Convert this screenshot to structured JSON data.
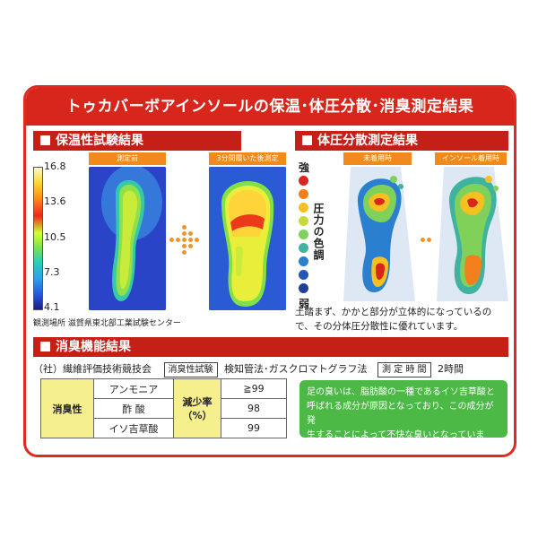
{
  "title": "トゥカバーボアインソールの保温･体圧分散･消臭測定結果",
  "heat": {
    "section_title": "保温性試験結果",
    "before_caption": "測定前",
    "after_caption": "3分間履いた後測定",
    "scale": [
      "16.8",
      "13.6",
      "10.5",
      "7.3",
      "4.1"
    ],
    "location": "観測場所 滋賀県東北部工業試験センター"
  },
  "pressure": {
    "section_title": "体圧分散測定結果",
    "no_insole_caption": "未着用時",
    "insole_caption": "インソール着用時",
    "strong_label": "強",
    "weak_label": "弱",
    "scale_label": "圧力の色調",
    "legend_colors": [
      "#d9261c",
      "#f27e1c",
      "#f6c022",
      "#c9d93a",
      "#7fd15a",
      "#3fb3a0",
      "#2a7fcf",
      "#2456b8",
      "#1e3f9a"
    ],
    "description_line1": "土踏まず、かかと部分が立体的になっているの",
    "description_line2": "で、その分体圧分散性に優れています。"
  },
  "deodorant": {
    "section_title": "消臭機能結果",
    "org": "（社）繊維評価技術競技会",
    "test_tag": "消臭性試験",
    "method": "検知管法･ガスクロマトグラフ法",
    "time_tag": "測 定 時 間",
    "time_value": "2時間",
    "row_header": "消臭性",
    "rate_header_1": "減少率",
    "rate_header_2": "（%）",
    "rows": [
      {
        "name": "アンモニア",
        "value": "≧99"
      },
      {
        "name": "酢 酸",
        "value": "98"
      },
      {
        "name": "イソ吉草酸",
        "value": "99"
      }
    ],
    "note_line1": "足の臭いは、脂肪酸の一種であるイソ吉草酸と",
    "note_line2": "呼ばれる成分が原因となっており、この成分が発",
    "note_line3": "生することによって不快な臭いとなっています。"
  }
}
